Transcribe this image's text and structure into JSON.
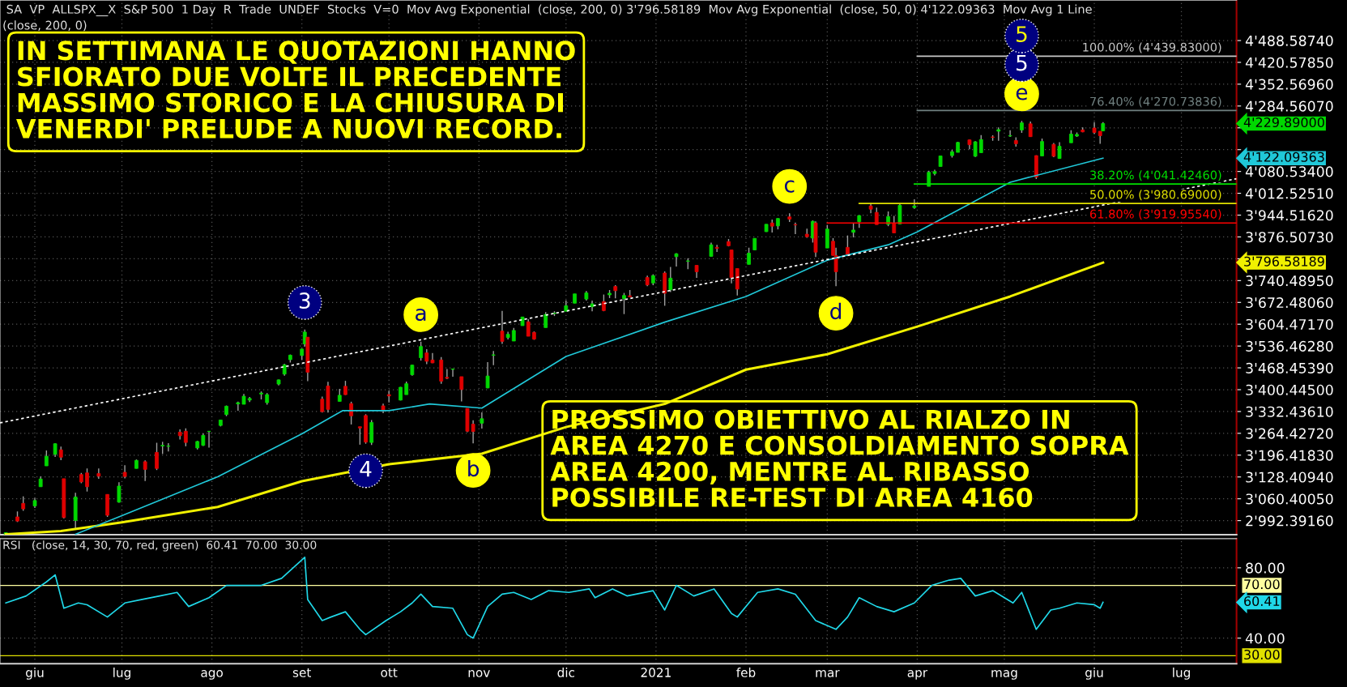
{
  "chart_data": [
    {
      "type": "candlestick",
      "annotations": [
        "SA  VP  ALLSPX__X  S&P 500  1 Day  R  Trade  UNDEF  Stocks  V=0  Mov Avg Exponential  (close, 200, 0) 3'796.58189  Mov Avg Exponential  (close, 50, 0) 4'122.09363  Mov Avg 1 Line",
        "(close, 200, 0)",
        "IN SETTIMANA LE QUOTAZIONI HANNO\nSFIORATO DUE VOLTE IL PRECEDENTE\nMASSIMO STORICO E LA CHIUSURA DI\nVENERDI' PRELUDE A NUOVI RECORD.",
        "PROSSIMO OBIETTIVO AL RIALZO IN\nAREA 4270 E CONSOLDIAMENTO SOPRA\nAREA 4200, MENTRE AL RIBASSO\nPOSSIBILE RE-TEST DI AREA 4160",
        {
          "text": "3",
          "x": "2020-09-02",
          "y": 3588
        },
        {
          "text": "4",
          "x": "2020-09-23",
          "y": 3232
        },
        {
          "text": "a",
          "x": "2020-10-12",
          "y": 3550
        },
        {
          "text": "b",
          "x": "2020-10-30",
          "y": 3233
        },
        {
          "text": "c",
          "x": "2021-02-16",
          "y": 3950
        },
        {
          "text": "d",
          "x": "2021-03-04",
          "y": 3723
        },
        {
          "text": "e",
          "x": "2021-05-07",
          "y": 4238
        },
        {
          "text": "5",
          "x": "2021-05-07",
          "y": 4238
        },
        {
          "text": "5",
          "x": "2021-05-07",
          "y": 4439.8
        },
        {
          "text": "100.00% (4'439.83000)",
          "x": "2021-07-15",
          "y": 4439.83
        },
        {
          "text": "76.40% (4'270.73836)",
          "x": "2021-07-15",
          "y": 4270.74
        },
        {
          "text": "38.20% (4'041.42460)",
          "x": "2021-07-15",
          "y": 4041.42
        },
        {
          "text": "50.00% (3'980.69000)",
          "x": "2021-07-15",
          "y": 3980.69
        },
        {
          "text": "61.80% (3'919.95540)",
          "x": "2021-07-15",
          "y": 3919.96
        },
        "4'229.89000",
        "4'122.09363",
        "3'796.58189"
      ],
      "x": [
        "2020-05-22",
        "2020-05-26",
        "2020-05-28",
        "2020-06-01",
        "2020-06-03",
        "2020-06-05",
        "2020-06-08",
        "2020-06-10",
        "2020-06-11",
        "2020-06-15",
        "2020-06-17",
        "2020-06-19",
        "2020-06-23",
        "2020-06-26",
        "2020-06-30",
        "2020-07-02",
        "2020-07-06",
        "2020-07-09",
        "2020-07-13",
        "2020-07-15",
        "2020-07-17",
        "2020-07-21",
        "2020-07-23",
        "2020-07-27",
        "2020-07-29",
        "2020-07-31",
        "2020-08-04",
        "2020-08-06",
        "2020-08-10",
        "2020-08-12",
        "2020-08-14",
        "2020-08-18",
        "2020-08-20",
        "2020-08-24",
        "2020-08-26",
        "2020-08-28",
        "2020-09-01",
        "2020-09-02",
        "2020-09-03",
        "2020-09-08",
        "2020-09-10",
        "2020-09-14",
        "2020-09-16",
        "2020-09-18",
        "2020-09-21",
        "2020-09-23",
        "2020-09-25",
        "2020-09-29",
        "2020-10-01",
        "2020-10-05",
        "2020-10-07",
        "2020-10-09",
        "2020-10-12",
        "2020-10-14",
        "2020-10-16",
        "2020-10-19",
        "2020-10-21",
        "2020-10-23",
        "2020-10-26",
        "2020-10-28",
        "2020-10-30",
        "2020-11-02",
        "2020-11-04",
        "2020-11-06",
        "2020-11-09",
        "2020-11-11",
        "2020-11-13",
        "2020-11-16",
        "2020-11-18",
        "2020-11-20",
        "2020-11-24",
        "2020-11-27",
        "2020-12-01",
        "2020-12-04",
        "2020-12-08",
        "2020-12-10",
        "2020-12-14",
        "2020-12-16",
        "2020-12-18",
        "2020-12-21",
        "2020-12-23",
        "2020-12-29",
        "2020-12-31",
        "2021-01-04",
        "2021-01-06",
        "2021-01-08",
        "2021-01-12",
        "2021-01-15",
        "2021-01-20",
        "2021-01-22",
        "2021-01-26",
        "2021-01-27",
        "2021-01-29",
        "2021-02-02",
        "2021-02-04",
        "2021-02-08",
        "2021-02-10",
        "2021-02-12",
        "2021-02-16",
        "2021-02-18",
        "2021-02-22",
        "2021-02-24",
        "2021-02-25",
        "2021-03-01",
        "2021-03-03",
        "2021-03-04",
        "2021-03-08",
        "2021-03-10",
        "2021-03-12",
        "2021-03-16",
        "2021-03-18",
        "2021-03-22",
        "2021-03-24",
        "2021-03-26",
        "2021-03-31",
        "2021-04-05",
        "2021-04-07",
        "2021-04-09",
        "2021-04-13",
        "2021-04-15",
        "2021-04-19",
        "2021-04-21",
        "2021-04-23",
        "2021-04-27",
        "2021-04-29",
        "2021-05-03",
        "2021-05-05",
        "2021-05-07",
        "2021-05-10",
        "2021-05-12",
        "2021-05-14",
        "2021-05-18",
        "2021-05-20",
        "2021-05-24",
        "2021-05-26",
        "2021-05-28",
        "2021-06-01",
        "2021-06-03",
        "2021-06-04"
      ],
      "ohlc": [
        [
          2948,
          2956,
          2933,
          2955
        ],
        [
          3004,
          3021,
          2988,
          2991
        ],
        [
          3046,
          3068,
          3023,
          3029
        ],
        [
          3038,
          3063,
          3032,
          3055
        ],
        [
          3098,
          3130,
          3098,
          3122
        ],
        [
          3163,
          3211,
          3163,
          3193
        ],
        [
          3199,
          3233,
          3191,
          3232
        ],
        [
          3213,
          3223,
          3181,
          3190
        ],
        [
          3123,
          3123,
          2999,
          3002
        ],
        [
          2993,
          3079,
          2965,
          3066
        ],
        [
          3136,
          3141,
          3109,
          3113
        ],
        [
          3141,
          3155,
          3083,
          3098
        ],
        [
          3139,
          3155,
          3123,
          3131
        ],
        [
          3074,
          3074,
          3004,
          3009
        ],
        [
          3050,
          3112,
          3048,
          3100
        ],
        [
          3143,
          3165,
          3124,
          3130
        ],
        [
          3155,
          3183,
          3155,
          3180
        ],
        [
          3176,
          3180,
          3116,
          3152
        ],
        [
          3205,
          3235,
          3150,
          3155
        ],
        [
          3225,
          3238,
          3200,
          3227
        ],
        [
          3224,
          3234,
          3208,
          3224
        ],
        [
          3268,
          3277,
          3245,
          3257
        ],
        [
          3271,
          3280,
          3224,
          3236
        ],
        [
          3219,
          3241,
          3214,
          3239
        ],
        [
          3227,
          3264,
          3225,
          3258
        ],
        [
          3270,
          3272,
          3220,
          3271
        ],
        [
          3289,
          3306,
          3286,
          3306
        ],
        [
          3323,
          3351,
          3318,
          3349
        ],
        [
          3356,
          3363,
          3335,
          3360
        ],
        [
          3355,
          3387,
          3355,
          3380
        ],
        [
          3368,
          3378,
          3362,
          3373
        ],
        [
          3387,
          3395,
          3370,
          3390
        ],
        [
          3360,
          3390,
          3354,
          3385
        ],
        [
          3418,
          3432,
          3414,
          3431
        ],
        [
          3449,
          3481,
          3444,
          3478
        ],
        [
          3494,
          3510,
          3485,
          3508
        ],
        [
          3507,
          3528,
          3494,
          3527
        ],
        [
          3543,
          3588,
          3535,
          3580
        ],
        [
          3564,
          3564,
          3427,
          3455
        ],
        [
          3371,
          3379,
          3329,
          3332
        ],
        [
          3412,
          3425,
          3329,
          3339
        ],
        [
          3364,
          3403,
          3364,
          3383
        ],
        [
          3411,
          3428,
          3384,
          3385
        ],
        [
          3357,
          3363,
          3292,
          3319
        ],
        [
          3285,
          3285,
          3229,
          3281
        ],
        [
          3320,
          3324,
          3232,
          3237
        ],
        [
          3236,
          3306,
          3228,
          3298
        ],
        [
          3350,
          3357,
          3327,
          3335
        ],
        [
          3385,
          3397,
          3361,
          3381
        ],
        [
          3368,
          3409,
          3367,
          3408
        ],
        [
          3385,
          3426,
          3385,
          3419
        ],
        [
          3447,
          3478,
          3444,
          3477
        ],
        [
          3500,
          3550,
          3491,
          3535
        ],
        [
          3515,
          3527,
          3480,
          3489
        ],
        [
          3493,
          3515,
          3483,
          3484
        ],
        [
          3493,
          3502,
          3419,
          3427
        ],
        [
          3439,
          3465,
          3433,
          3436
        ],
        [
          3464,
          3466,
          3441,
          3465
        ],
        [
          3441,
          3441,
          3364,
          3401
        ],
        [
          3342,
          3342,
          3268,
          3271
        ],
        [
          3293,
          3305,
          3233,
          3270
        ],
        [
          3296,
          3330,
          3279,
          3310
        ],
        [
          3406,
          3486,
          3405,
          3443
        ],
        [
          3508,
          3521,
          3477,
          3509
        ],
        [
          3583,
          3646,
          3543,
          3551
        ],
        [
          3563,
          3581,
          3557,
          3573
        ],
        [
          3552,
          3593,
          3552,
          3585
        ],
        [
          3600,
          3628,
          3600,
          3627
        ],
        [
          3612,
          3620,
          3567,
          3567
        ],
        [
          3579,
          3582,
          3556,
          3558
        ],
        [
          3594,
          3642,
          3594,
          3635
        ],
        [
          3638,
          3645,
          3630,
          3638
        ],
        [
          3645,
          3679,
          3645,
          3662
        ],
        [
          3670,
          3699,
          3670,
          3699
        ],
        [
          3683,
          3708,
          3678,
          3702
        ],
        [
          3659,
          3678,
          3645,
          3668
        ],
        [
          3675,
          3697,
          3645,
          3647
        ],
        [
          3696,
          3711,
          3686,
          3701
        ],
        [
          3722,
          3726,
          3685,
          3709
        ],
        [
          3684,
          3702,
          3636,
          3694
        ],
        [
          3693,
          3711,
          3689,
          3690
        ],
        [
          3750,
          3756,
          3723,
          3727
        ],
        [
          3733,
          3760,
          3726,
          3756
        ],
        [
          3764,
          3769,
          3662,
          3701
        ],
        [
          3712,
          3783,
          3705,
          3748
        ],
        [
          3815,
          3826,
          3784,
          3824
        ],
        [
          3801,
          3810,
          3776,
          3801
        ],
        [
          3788,
          3788,
          3749,
          3768
        ],
        [
          3816,
          3859,
          3816,
          3852
        ],
        [
          3844,
          3852,
          3830,
          3841
        ],
        [
          3862,
          3870,
          3847,
          3849
        ],
        [
          3836,
          3836,
          3732,
          3750
        ],
        [
          3778,
          3778,
          3694,
          3714
        ],
        [
          3791,
          3843,
          3791,
          3826
        ],
        [
          3836,
          3872,
          3836,
          3872
        ],
        [
          3893,
          3916,
          3892,
          3916
        ],
        [
          3920,
          3931,
          3890,
          3910
        ],
        [
          3911,
          3935,
          3900,
          3934
        ],
        [
          3939,
          3950,
          3923,
          3932
        ],
        [
          3915,
          3921,
          3885,
          3914
        ],
        [
          3885,
          3902,
          3874,
          3877
        ],
        [
          3873,
          3928,
          3859,
          3925
        ],
        [
          3920,
          3925,
          3814,
          3829
        ],
        [
          3842,
          3914,
          3842,
          3901
        ],
        [
          3863,
          3873,
          3818,
          3819
        ],
        [
          3818,
          3843,
          3723,
          3768
        ],
        [
          3844,
          3881,
          3821,
          3821
        ],
        [
          3891,
          3918,
          3875,
          3898
        ],
        [
          3924,
          3944,
          3905,
          3943
        ],
        [
          3973,
          3982,
          3950,
          3963
        ],
        [
          3953,
          3968,
          3915,
          3915
        ],
        [
          3916,
          3956,
          3910,
          3940
        ],
        [
          3919,
          3942,
          3889,
          3889
        ],
        [
          3917,
          3979,
          3917,
          3975
        ],
        [
          3968,
          3994,
          3964,
          3973
        ],
        [
          4034,
          4083,
          4034,
          4078
        ],
        [
          4074,
          4086,
          4068,
          4080
        ],
        [
          4096,
          4129,
          4096,
          4129
        ],
        [
          4130,
          4148,
          4124,
          4142
        ],
        [
          4140,
          4173,
          4140,
          4171
        ],
        [
          4179,
          4180,
          4150,
          4164
        ],
        [
          4128,
          4175,
          4126,
          4173
        ],
        [
          4139,
          4194,
          4139,
          4180
        ],
        [
          4188,
          4193,
          4176,
          4187
        ],
        [
          4206,
          4218,
          4176,
          4211
        ],
        [
          4191,
          4209,
          4188,
          4192
        ],
        [
          4177,
          4187,
          4158,
          4167
        ],
        [
          4210,
          4238,
          4201,
          4232
        ],
        [
          4229,
          4236,
          4188,
          4189
        ],
        [
          4130,
          4131,
          4057,
          4063
        ],
        [
          4129,
          4183,
          4129,
          4174
        ],
        [
          4165,
          4169,
          4125,
          4128
        ],
        [
          4121,
          4172,
          4121,
          4159
        ],
        [
          4170,
          4209,
          4170,
          4197
        ],
        [
          4191,
          4202,
          4188,
          4196
        ],
        [
          4210,
          4218,
          4203,
          4204
        ],
        [
          4216,
          4234,
          4197,
          4202
        ],
        [
          4206,
          4206,
          4167,
          4192
        ],
        [
          4207,
          4234,
          4206,
          4230
        ]
      ],
      "series": [
        {
          "type": "line",
          "color": "#f0f000",
          "x": [
            "2020-05-22",
            "2020-06-10",
            "2020-07-01",
            "2020-08-03",
            "2020-09-01",
            "2020-10-01",
            "2020-11-02",
            "2020-12-01",
            "2021-01-04",
            "2021-02-01",
            "2021-03-01",
            "2021-04-01",
            "2021-05-03",
            "2021-06-04"
          ],
          "values": [
            2950,
            2960,
            2987,
            3035,
            3115,
            3168,
            3201,
            3284,
            3356,
            3463,
            3511,
            3597,
            3691,
            3796.6
          ]
        },
        {
          "type": "line",
          "color": "#20c8d8",
          "x": [
            "2020-06-15",
            "2020-07-01",
            "2020-08-03",
            "2020-09-01",
            "2020-09-15",
            "2020-10-01",
            "2020-10-15",
            "2020-11-02",
            "2020-12-01",
            "2021-01-04",
            "2021-02-01",
            "2021-03-01",
            "2021-03-22",
            "2021-04-01",
            "2021-05-03",
            "2021-06-04"
          ],
          "values": [
            2950,
            3008,
            3129,
            3263,
            3335,
            3335,
            3356,
            3343,
            3504,
            3611,
            3691,
            3804,
            3852,
            3892,
            4047,
            4122.1
          ]
        },
        {
          "type": "line",
          "color": "#ffffff",
          "line_style": "dotted",
          "x": [
            "2020-05-20",
            "2021-07-20"
          ],
          "values": [
            3297,
            4058
          ]
        },
        {
          "type": "line",
          "color": "#c8c8c8",
          "x": [
            "2021-04-01",
            "2021-07-20"
          ],
          "values": [
            4439.8,
            4439.8
          ]
        },
        {
          "type": "line",
          "color": "#708080",
          "x": [
            "2021-04-01",
            "2021-07-20"
          ],
          "values": [
            4270.7,
            4270.7
          ]
        },
        {
          "type": "line",
          "color": "#00e000",
          "x": [
            "2021-03-31",
            "2021-07-20"
          ],
          "values": [
            4041.4,
            4041.4
          ]
        },
        {
          "type": "line",
          "color": "#e0e000",
          "x": [
            "2021-03-12",
            "2021-07-20"
          ],
          "values": [
            3980.7,
            3980.7
          ]
        },
        {
          "type": "line",
          "color": "#ff0000",
          "x": [
            "2021-03-01",
            "2021-07-20"
          ],
          "values": [
            3920.0,
            3920.0
          ]
        }
      ],
      "xlim": [
        "2020-05-20",
        "2021-07-20"
      ],
      "xticks": [
        {
          "value": "2020-06-01",
          "label": null
        },
        {
          "value": "2020-07-01",
          "label": null
        },
        {
          "value": "2020-08-01",
          "label": null
        },
        {
          "value": "2020-09-01",
          "label": null
        },
        {
          "value": "2020-10-01",
          "label": null
        },
        {
          "value": "2020-11-01",
          "label": null
        },
        {
          "value": "2020-12-01",
          "label": null
        },
        {
          "value": "2021-01-01",
          "label": null
        },
        {
          "value": "2021-02-01",
          "label": null
        },
        {
          "value": "2021-03-01",
          "label": null
        },
        {
          "value": "2021-04-01",
          "label": null
        },
        {
          "value": "2021-05-01",
          "label": null
        },
        {
          "value": "2021-06-01",
          "label": null
        },
        {
          "value": "2021-07-01",
          "label": null
        }
      ],
      "ylim": [
        2948.5,
        4614.3
      ],
      "yticks": [
        {
          "value": 4488.5874,
          "label": "4'488.58740"
        },
        {
          "value": 4420.5785,
          "label": "4'420.57850"
        },
        {
          "value": 4352.5696,
          "label": "4'352.56960"
        },
        {
          "value": 4284.5607,
          "label": "4'284.56070"
        },
        {
          "value": 4216.5518,
          "label": null
        },
        {
          "value": 4148.5429,
          "label": null
        },
        {
          "value": 4080.534,
          "label": "4'080.53400"
        },
        {
          "value": 4012.5251,
          "label": "4'012.52510"
        },
        {
          "value": 3944.5162,
          "label": "3'944.51620"
        },
        {
          "value": 3876.5073,
          "label": "3'876.50730"
        },
        {
          "value": 3808.4984,
          "label": null
        },
        {
          "value": 3740.4895,
          "label": "3'740.48950"
        },
        {
          "value": 3672.4806,
          "label": "3'672.48060"
        },
        {
          "value": 3604.4717,
          "label": "3'604.47170"
        },
        {
          "value": 3536.4628,
          "label": "3'536.46280"
        },
        {
          "value": 3468.4539,
          "label": "3'468.45390"
        },
        {
          "value": 3400.445,
          "label": "3'400.44500"
        },
        {
          "value": 3332.4361,
          "label": "3'332.43610"
        },
        {
          "value": 3264.4272,
          "label": "3'264.42720"
        },
        {
          "value": 3196.4183,
          "label": "3'196.41830"
        },
        {
          "value": 3128.4094,
          "label": "3'128.40940"
        },
        {
          "value": 3060.4005,
          "label": "3'060.40050"
        },
        {
          "value": 2992.3916,
          "label": "2'992.39160"
        }
      ],
      "grid": true,
      "tick_labels": "y"
    },
    {
      "type": "line",
      "annotations": [
        "RSI   (close, 14, 30, 70, red, green)  60.41  70.00  30.00",
        "60.41"
      ],
      "series": [
        {
          "color": "#20d8e8",
          "x": [
            "2020-05-22",
            "2020-05-29",
            "2020-06-05",
            "2020-06-08",
            "2020-06-11",
            "2020-06-16",
            "2020-06-19",
            "2020-06-26",
            "2020-07-02",
            "2020-07-08",
            "2020-07-14",
            "2020-07-20",
            "2020-07-24",
            "2020-07-31",
            "2020-08-06",
            "2020-08-12",
            "2020-08-18",
            "2020-08-25",
            "2020-09-02",
            "2020-09-03",
            "2020-09-08",
            "2020-09-11",
            "2020-09-16",
            "2020-09-21",
            "2020-09-23",
            "2020-09-30",
            "2020-10-05",
            "2020-10-09",
            "2020-10-12",
            "2020-10-16",
            "2020-10-23",
            "2020-10-28",
            "2020-10-30",
            "2020-11-04",
            "2020-11-09",
            "2020-11-13",
            "2020-11-19",
            "2020-11-25",
            "2020-12-02",
            "2020-12-09",
            "2020-12-11",
            "2020-12-17",
            "2020-12-22",
            "2020-12-31",
            "2021-01-04",
            "2021-01-08",
            "2021-01-14",
            "2021-01-21",
            "2021-01-27",
            "2021-01-29",
            "2021-02-05",
            "2021-02-12",
            "2021-02-18",
            "2021-02-25",
            "2021-03-04",
            "2021-03-08",
            "2021-03-12",
            "2021-03-18",
            "2021-03-24",
            "2021-03-31",
            "2021-04-06",
            "2021-04-12",
            "2021-04-16",
            "2021-04-21",
            "2021-04-27",
            "2021-05-04",
            "2021-05-07",
            "2021-05-12",
            "2021-05-17",
            "2021-05-20",
            "2021-05-26",
            "2021-06-01",
            "2021-06-03",
            "2021-06-04"
          ],
          "values": [
            60,
            64,
            72,
            76,
            57,
            60,
            59,
            52,
            60,
            62,
            64,
            66,
            58,
            63,
            70,
            70,
            70,
            74,
            86,
            62,
            50,
            52,
            55,
            45,
            42,
            50,
            55,
            60,
            65,
            58,
            57,
            42,
            40,
            58,
            65,
            66,
            62,
            67,
            66,
            68,
            63,
            68,
            64,
            67,
            56,
            70,
            64,
            68,
            54,
            52,
            66,
            68,
            65,
            50,
            45,
            52,
            63,
            58,
            55,
            60,
            70,
            73,
            74,
            64,
            67,
            60,
            66,
            45,
            56,
            57,
            60,
            59,
            57,
            60.4
          ]
        }
      ],
      "ref_lines": [
        {
          "axis": "y",
          "value": 70,
          "label": "70.00",
          "color": "#ffffa0"
        },
        {
          "axis": "y",
          "value": 30,
          "label": "30.00",
          "color": "#e0e000"
        }
      ],
      "xlim": [
        "2020-05-20",
        "2021-07-20"
      ],
      "xticks": [
        {
          "value": "2020-06-01",
          "label": "giu"
        },
        {
          "value": "2020-07-01",
          "label": "lug"
        },
        {
          "value": "2020-08-01",
          "label": "ago"
        },
        {
          "value": "2020-09-01",
          "label": "set"
        },
        {
          "value": "2020-10-01",
          "label": "ott"
        },
        {
          "value": "2020-11-01",
          "label": "nov"
        },
        {
          "value": "2020-12-01",
          "label": "dic"
        },
        {
          "value": "2021-01-01",
          "label": "2021"
        },
        {
          "value": "2021-02-01",
          "label": "feb"
        },
        {
          "value": "2021-03-01",
          "label": "mar"
        },
        {
          "value": "2021-04-01",
          "label": "apr"
        },
        {
          "value": "2021-05-01",
          "label": "mag"
        },
        {
          "value": "2021-06-01",
          "label": "giu"
        },
        {
          "value": "2021-07-01",
          "label": "lug"
        }
      ],
      "ylim": [
        25.5,
        96.6
      ],
      "yticks": [
        {
          "value": 80,
          "label": "80.00"
        },
        {
          "value": 40,
          "label": "40.00"
        }
      ],
      "grid": true
    }
  ]
}
